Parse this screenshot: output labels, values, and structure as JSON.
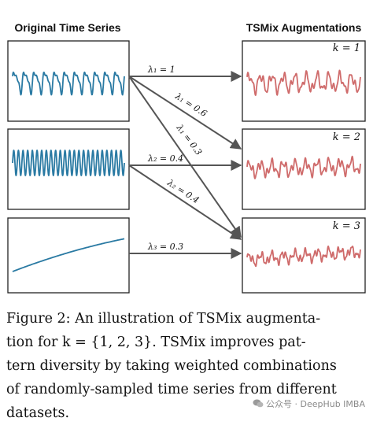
{
  "left_heading": "Original Time Series",
  "right_heading": "TSMix Augmentations",
  "k_labels": [
    "k = 1",
    "k = 2",
    "k = 3"
  ],
  "weights": [
    "λ₁ = 1",
    "λ₁ = 0.6",
    "λ₁ = 0.3",
    "λ₂ = 0.4",
    "λ₂ = 0.4",
    "λ₃ = 0.3"
  ],
  "colors": {
    "original": "#2a7aa3",
    "augmented": "#cf6b6b",
    "arrow": "#555555",
    "frame": "#222222"
  },
  "caption": {
    "line1": "Figure 2:  An illustration of TSMix augmenta-",
    "line2": "tion for k = {1, 2, 3}.  TSMix improves pat-",
    "line3": "tern diversity by taking weighted combinations",
    "line4": "of randomly-sampled time series from different",
    "line5": "datasets."
  },
  "watermark": "公众号 · DeepHub IMBA"
}
